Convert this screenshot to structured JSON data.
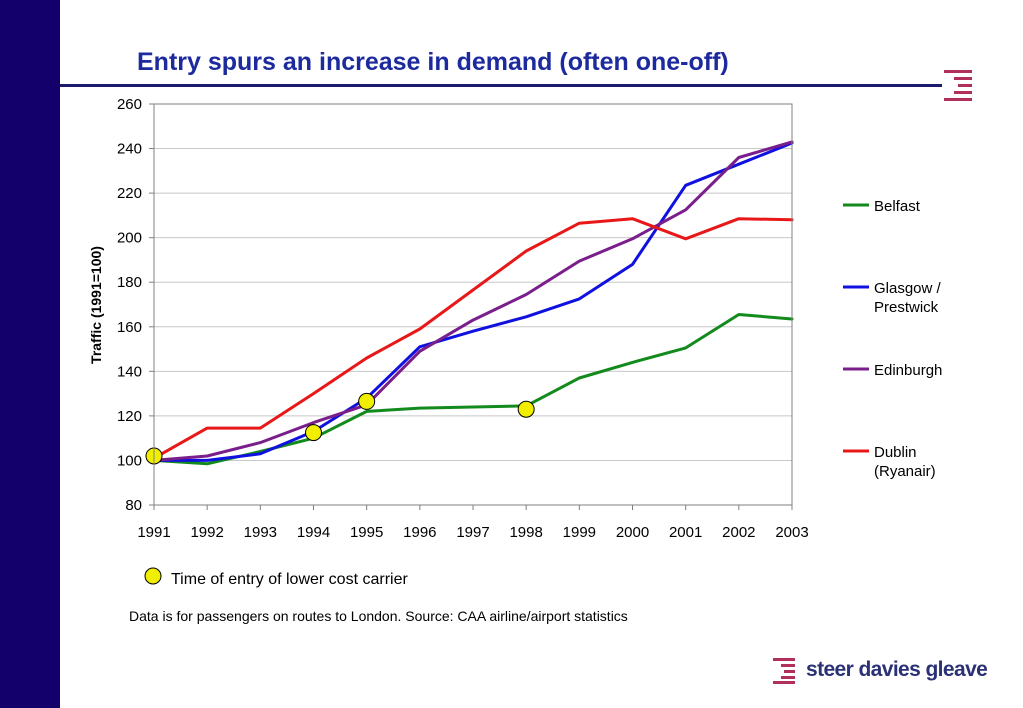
{
  "slide": {
    "title": "Entry spurs an increase in demand (often one-off)",
    "note": "Data is for passengers on routes to London. Source: CAA airline/airport statistics",
    "logo_text": "steer davies gleave",
    "sidebar_color": "#14006b",
    "accent_color": "#b0305a"
  },
  "chart_data": {
    "type": "line",
    "title": "",
    "xlabel": "",
    "ylabel": "Traffic (1991=100)",
    "x": [
      "1991",
      "1992",
      "1993",
      "1994",
      "1995",
      "1996",
      "1997",
      "1998",
      "1999",
      "2000",
      "2001",
      "2002",
      "2003"
    ],
    "ylim": [
      80,
      260
    ],
    "yticks": [
      80,
      100,
      120,
      140,
      160,
      180,
      200,
      220,
      240,
      260
    ],
    "grid": true,
    "legend_position": "right",
    "series": [
      {
        "name": "Belfast",
        "color": "#138a1c",
        "values": [
          100,
          98.5,
          104,
          110,
          122,
          123.5,
          124,
          124.5,
          137,
          144,
          150.5,
          165.5,
          163.5
        ]
      },
      {
        "name": "Glasgow / Prestwick",
        "color": "#1010e0",
        "values": [
          100,
          100,
          103,
          113,
          128,
          151,
          158,
          164.5,
          172.5,
          188,
          223.5,
          233,
          242.5
        ]
      },
      {
        "name": "Edinburgh",
        "color": "#7a1e8c",
        "values": [
          100,
          102,
          108,
          117,
          125,
          149,
          163,
          174.5,
          189.5,
          199.5,
          212.5,
          236,
          243
        ]
      },
      {
        "name": "Dublin (Ryanair)",
        "color": "#e81818",
        "values": [
          101,
          114.5,
          114.5,
          130,
          146,
          159,
          176.5,
          194,
          206.5,
          208.5,
          199.5,
          208.5,
          208
        ]
      }
    ],
    "entry_markers": {
      "label": "Time of entry of lower cost carrier",
      "color": "#f2ee00",
      "points": [
        {
          "x": "1991",
          "y": 102
        },
        {
          "x": "1994",
          "y": 112.5
        },
        {
          "x": "1995",
          "y": 126.5
        },
        {
          "x": "1998",
          "y": 123
        }
      ]
    }
  }
}
